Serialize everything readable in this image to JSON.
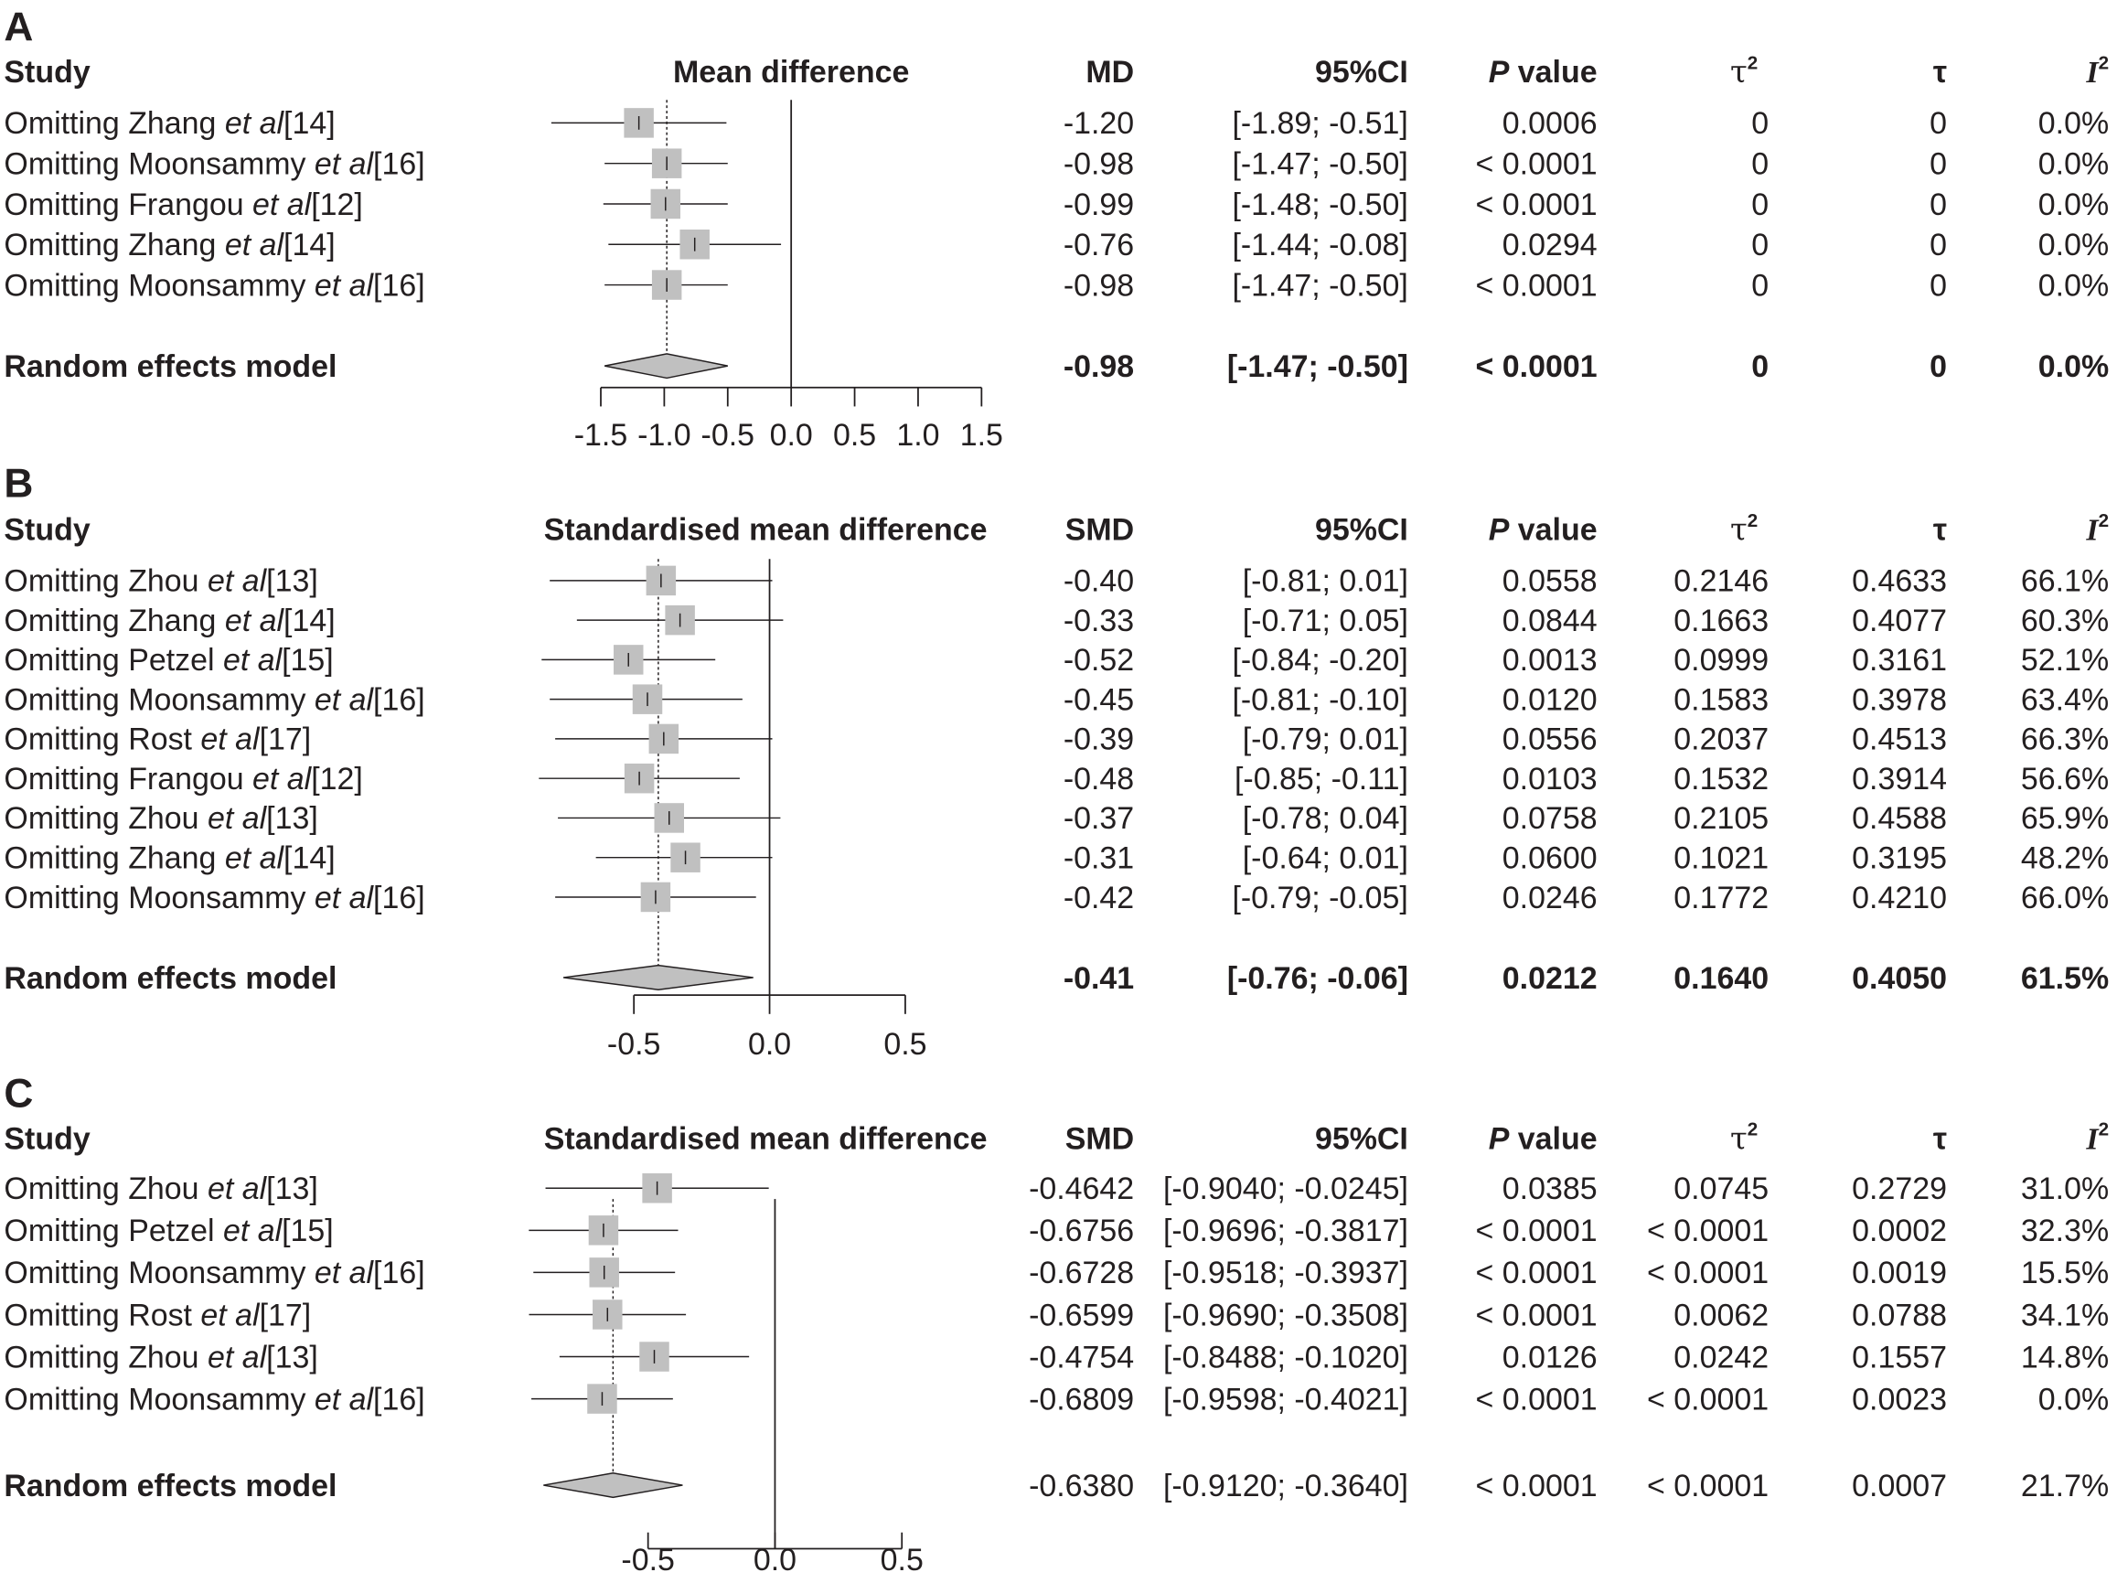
{
  "chart_data": [
    {
      "type": "forest",
      "panel": "A",
      "headers": {
        "study": "Study",
        "plot": "Mean difference",
        "est": "MD",
        "ci": "95%CI",
        "p": "P value",
        "tau2": "τ2",
        "tau": "τ",
        "i2": "I2"
      },
      "xlim": [
        -1.5,
        1.5
      ],
      "ticks": [
        "-1.5",
        "-1.0",
        "-0.5",
        "0.0",
        "0.5",
        "1.0",
        "1.5"
      ],
      "rows": [
        {
          "pre": "Omitting Zhang ",
          "etal": "et al",
          "ref": "[14]",
          "est": "-1.20",
          "ci": "[-1.89; -0.51]",
          "lo": -1.89,
          "hi": -0.51,
          "p": "0.0006",
          "tau2": "0",
          "tau": "0",
          "i2": "0.0%"
        },
        {
          "pre": "Omitting Moonsammy ",
          "etal": "et al",
          "ref": "[16]",
          "est": "-0.98",
          "ci": "[-1.47; -0.50]",
          "lo": -1.47,
          "hi": -0.5,
          "p": "< 0.0001",
          "tau2": "0",
          "tau": "0",
          "i2": "0.0%"
        },
        {
          "pre": "Omitting Frangou ",
          "etal": "et al",
          "ref": "[12]",
          "est": "-0.99",
          "ci": "[-1.48; -0.50]",
          "lo": -1.48,
          "hi": -0.5,
          "p": "< 0.0001",
          "tau2": "0",
          "tau": "0",
          "i2": "0.0%"
        },
        {
          "pre": "Omitting Zhang ",
          "etal": "et al",
          "ref": "[14]",
          "est": "-0.76",
          "ci": "[-1.44; -0.08]",
          "lo": -1.44,
          "hi": -0.08,
          "p": "0.0294",
          "tau2": "0",
          "tau": "0",
          "i2": "0.0%"
        },
        {
          "pre": "Omitting Moonsammy ",
          "etal": "et al",
          "ref": "[16]",
          "est": "-0.98",
          "ci": "[-1.47; -0.50]",
          "lo": -1.47,
          "hi": -0.5,
          "p": "< 0.0001",
          "tau2": "0",
          "tau": "0",
          "i2": "0.0%"
        }
      ],
      "model": {
        "label": "Random effects model",
        "bold": true,
        "est": "-0.98",
        "ci": "[-1.47; -0.50]",
        "lo": -1.47,
        "hi": -0.5,
        "p": "< 0.0001",
        "tau2": "0",
        "tau": "0",
        "i2": "0.0%"
      }
    },
    {
      "type": "forest",
      "panel": "B",
      "headers": {
        "study": "Study",
        "plot": "Standardised mean difference",
        "est": "SMD",
        "ci": "95%CI",
        "p": "P value",
        "tau2": "τ2",
        "tau": "τ",
        "i2": "I2"
      },
      "xlim": [
        -0.5,
        0.5
      ],
      "ticks": [
        "-0.5",
        "0.0",
        "0.5"
      ],
      "rows": [
        {
          "pre": "Omitting Zhou ",
          "etal": "et al",
          "ref": "[13]",
          "est": "-0.40",
          "ci": "[-0.81;  0.01]",
          "lo": -0.81,
          "hi": 0.01,
          "p": "0.0558",
          "tau2": "0.2146",
          "tau": "0.4633",
          "i2": "66.1%"
        },
        {
          "pre": "Omitting Zhang ",
          "etal": "et al",
          "ref": "[14]",
          "est": "-0.33",
          "ci": "[-0.71;  0.05]",
          "lo": -0.71,
          "hi": 0.05,
          "p": "0.0844",
          "tau2": "0.1663",
          "tau": "0.4077",
          "i2": "60.3%"
        },
        {
          "pre": "Omitting Petzel ",
          "etal": "et al",
          "ref": "[15]",
          "est": "-0.52",
          "ci": "[-0.84; -0.20]",
          "lo": -0.84,
          "hi": -0.2,
          "p": "0.0013",
          "tau2": "0.0999",
          "tau": "0.3161",
          "i2": "52.1%"
        },
        {
          "pre": "Omitting Moonsammy ",
          "etal": "et al",
          "ref": "[16]",
          "est": "-0.45",
          "ci": "[-0.81; -0.10]",
          "lo": -0.81,
          "hi": -0.1,
          "p": "0.0120",
          "tau2": "0.1583",
          "tau": "0.3978",
          "i2": "63.4%"
        },
        {
          "pre": "Omitting Rost ",
          "etal": "et al",
          "ref": "[17]",
          "est": "-0.39",
          "ci": "[-0.79;  0.01]",
          "lo": -0.79,
          "hi": 0.01,
          "p": "0.0556",
          "tau2": "0.2037",
          "tau": "0.4513",
          "i2": "66.3%"
        },
        {
          "pre": "Omitting Frangou ",
          "etal": "et al",
          "ref": "[12]",
          "est": "-0.48",
          "ci": "[-0.85; -0.11]",
          "lo": -0.85,
          "hi": -0.11,
          "p": "0.0103",
          "tau2": "0.1532",
          "tau": "0.3914",
          "i2": "56.6%"
        },
        {
          "pre": "Omitting Zhou ",
          "etal": "et al",
          "ref": "[13]",
          "est": "-0.37",
          "ci": "[-0.78;  0.04]",
          "lo": -0.78,
          "hi": 0.04,
          "p": "0.0758",
          "tau2": "0.2105",
          "tau": "0.4588",
          "i2": "65.9%"
        },
        {
          "pre": "Omitting Zhang ",
          "etal": "et al",
          "ref": "[14]",
          "est": "-0.31",
          "ci": "[-0.64;  0.01]",
          "lo": -0.64,
          "hi": 0.01,
          "p": "0.0600",
          "tau2": "0.1021",
          "tau": "0.3195",
          "i2": "48.2%"
        },
        {
          "pre": "Omitting Moonsammy ",
          "etal": "et al",
          "ref": "[16]",
          "est": "-0.42",
          "ci": "[-0.79; -0.05]",
          "lo": -0.79,
          "hi": -0.05,
          "p": "0.0246",
          "tau2": "0.1772",
          "tau": "0.4210",
          "i2": "66.0%"
        }
      ],
      "model": {
        "label": "Random effects model",
        "bold": true,
        "est": "-0.41",
        "ci": "[-0.76; -0.06]",
        "lo": -0.76,
        "hi": -0.06,
        "p": "0.0212",
        "tau2": "0.1640",
        "tau": "0.4050",
        "i2": "61.5%"
      }
    },
    {
      "type": "forest",
      "panel": "C",
      "headers": {
        "study": "Study",
        "plot": "Standardised mean difference",
        "est": "SMD",
        "ci": "95%CI",
        "p": "P value",
        "tau2": "τ2",
        "tau": "τ",
        "i2": "I2"
      },
      "xlim": [
        -0.5,
        0.5
      ],
      "ticks": [
        "-0.5",
        "0.0",
        "0.5"
      ],
      "rows": [
        {
          "pre": "Omitting Zhou ",
          "etal": "et al",
          "ref": "[13]",
          "est": "-0.4642",
          "ci": "[-0.9040; -0.0245]",
          "lo": -0.904,
          "hi": -0.0245,
          "p": "0.0385",
          "tau2": "0.0745",
          "tau": "0.2729",
          "i2": "31.0%"
        },
        {
          "pre": "Omitting Petzel ",
          "etal": "et al",
          "ref": "[15]",
          "est": "-0.6756",
          "ci": "[-0.9696; -0.3817]",
          "lo": -0.9696,
          "hi": -0.3817,
          "p": "< 0.0001",
          "tau2": "< 0.0001",
          "tau": "0.0002",
          "i2": "32.3%"
        },
        {
          "pre": "Omitting Moonsammy ",
          "etal": "et al",
          "ref": "[16]",
          "est": "-0.6728",
          "ci": "[-0.9518; -0.3937]",
          "lo": -0.9518,
          "hi": -0.3937,
          "p": "< 0.0001",
          "tau2": "< 0.0001",
          "tau": "0.0019",
          "i2": "15.5%"
        },
        {
          "pre": "Omitting Rost ",
          "etal": "et al",
          "ref": "[17]",
          "est": "-0.6599",
          "ci": "[-0.9690; -0.3508]",
          "lo": -0.969,
          "hi": -0.3508,
          "p": "< 0.0001",
          "tau2": "0.0062",
          "tau": "0.0788",
          "i2": "34.1%"
        },
        {
          "pre": "Omitting Zhou ",
          "etal": "et al",
          "ref": "[13]",
          "est": "-0.4754",
          "ci": "[-0.8488; -0.1020]",
          "lo": -0.8488,
          "hi": -0.102,
          "p": "0.0126",
          "tau2": "0.0242",
          "tau": "0.1557",
          "i2": "14.8%"
        },
        {
          "pre": "Omitting Moonsammy ",
          "etal": "et al",
          "ref": "[16]",
          "est": "-0.6809",
          "ci": "[-0.9598; -0.4021]",
          "lo": -0.9598,
          "hi": -0.4021,
          "p": "< 0.0001",
          "tau2": "< 0.0001",
          "tau": "0.0023",
          "i2": "0.0%"
        }
      ],
      "model": {
        "label": "Random effects model",
        "bold": false,
        "est": "-0.6380",
        "ci": "[-0.9120; -0.3640]",
        "lo": -0.912,
        "hi": -0.364,
        "p": "< 0.0001",
        "tau2": "< 0.0001",
        "tau": "0.0007",
        "i2": "21.7%"
      }
    }
  ],
  "colors": {
    "square": "#c0c0c0",
    "diamond": "#c0c0c0",
    "line": "#231f20"
  }
}
